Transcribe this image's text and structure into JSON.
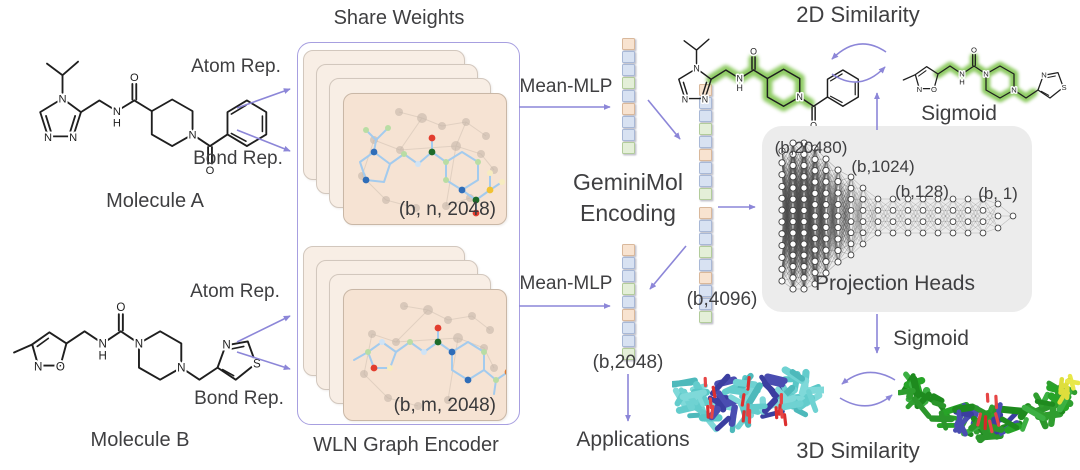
{
  "figure": {
    "share_weights": "Share Weights",
    "wln_encoder": "WLN Graph Encoder",
    "molecule_a": "Molecule A",
    "molecule_b": "Molecule B",
    "atom_rep": "Atom Rep.",
    "bond_rep": "Bond Rep.",
    "mean_mlp": "Mean-MLP",
    "geminimol_encoding": "GeminiMol Encoding",
    "applications": "Applications",
    "similarity_2d": "2D Similarity",
    "similarity_3d": "3D Similarity",
    "sigmoid": "Sigmoid",
    "projection_heads": "Projection Heads"
  },
  "dims": {
    "encoder_a": "(b, n, 2048)",
    "encoder_b": "(b, m, 2048)",
    "concat": "(b,4096)",
    "encoding": "(b,2048)",
    "head_in": "(b,20480)",
    "head_h1": "(b,1024)",
    "head_h2": "(b,128)",
    "head_out": "(b, 1)"
  },
  "atoms": {
    "n": "N",
    "o": "O",
    "s": "S",
    "h": "H"
  },
  "vectors": {
    "pattern": [
      "peach",
      "blue",
      "blue",
      "green",
      "blue",
      "peach",
      "blue",
      "blue",
      "green"
    ],
    "colors": {
      "peach": "#f8e3d0",
      "blue": "#d8e2f2",
      "green": "#e4efd8"
    },
    "border_colors": {
      "peach": "#d9b89b",
      "blue": "#a8b8d6",
      "green": "#b2cc9b"
    }
  },
  "colors": {
    "arrow": "#8c86d8",
    "container_border": "#a79fe0",
    "panel_fill": "#f6e3d3",
    "projection_box": "#ececec",
    "text": "#3f3f41",
    "highlight_2d": "#7cc24a"
  }
}
